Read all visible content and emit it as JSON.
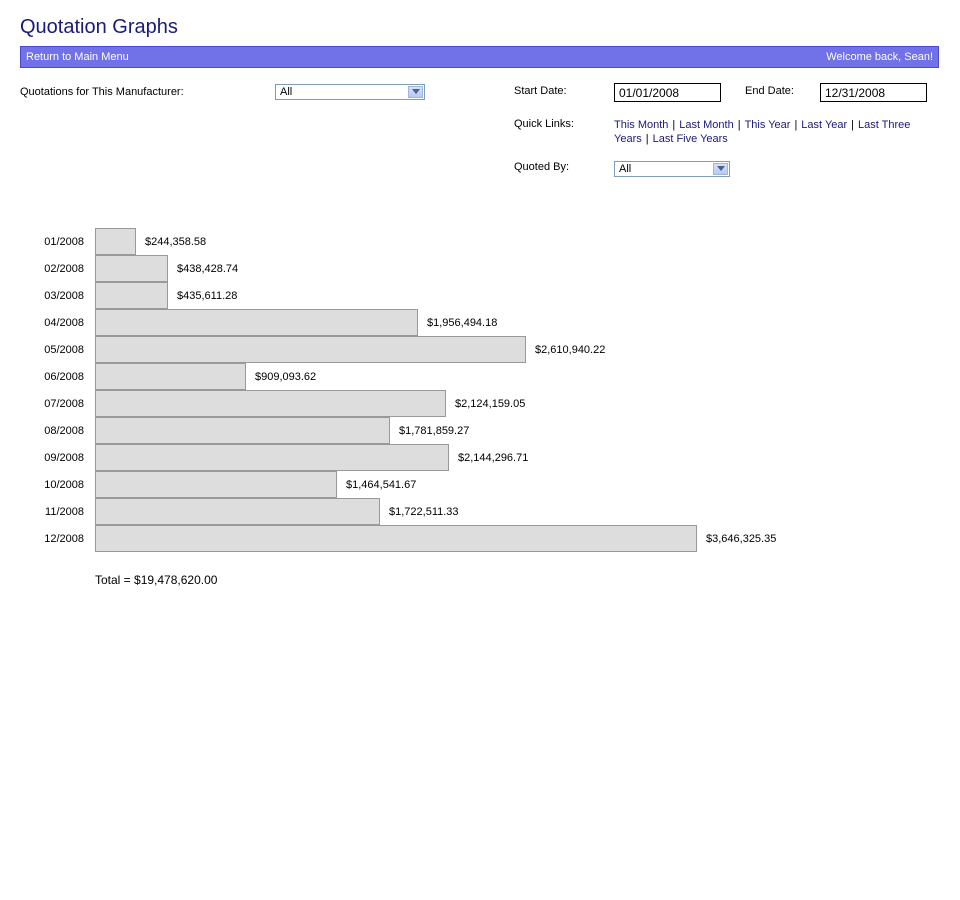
{
  "page": {
    "title": "Quotation Graphs"
  },
  "nav": {
    "return_label": "Return to Main Menu",
    "welcome": "Welcome back, Sean!"
  },
  "filters": {
    "manufacturer_label": "Quotations for This Manufacturer:",
    "manufacturer_value": "All",
    "start_label": "Start Date:",
    "start_value": "01/01/2008",
    "end_label": "End Date:",
    "end_value": "12/31/2008",
    "quick_links_label": "Quick Links:",
    "quick_links": [
      "This Month",
      "Last Month",
      "This Year",
      "Last Year",
      "Last Three Years",
      "Last Five Years"
    ],
    "quoted_by_label": "Quoted By:",
    "quoted_by_value": "All"
  },
  "colors": {
    "accent": "#7171e8",
    "title": "#1a1a7a",
    "bar_fill": "#dddddd",
    "bar_border": "#999999"
  },
  "chart_data": {
    "type": "bar",
    "orientation": "horizontal",
    "categories": [
      "01/2008",
      "02/2008",
      "03/2008",
      "04/2008",
      "05/2008",
      "06/2008",
      "07/2008",
      "08/2008",
      "09/2008",
      "10/2008",
      "11/2008",
      "12/2008"
    ],
    "values": [
      244358.58,
      438428.74,
      435611.28,
      1956494.18,
      2610940.22,
      909093.62,
      2124159.05,
      1781859.27,
      2144296.71,
      1464541.67,
      1722511.33,
      3646325.35
    ],
    "value_labels": [
      "$244,358.58",
      "$438,428.74",
      "$435,611.28",
      "$1,956,494.18",
      "$2,610,940.22",
      "$909,093.62",
      "$2,124,159.05",
      "$1,781,859.27",
      "$2,144,296.71",
      "$1,464,541.67",
      "$1,722,511.33",
      "$3,646,325.35"
    ],
    "grid": false
  },
  "summary": {
    "total_text": "Total = $19,478,620.00"
  }
}
